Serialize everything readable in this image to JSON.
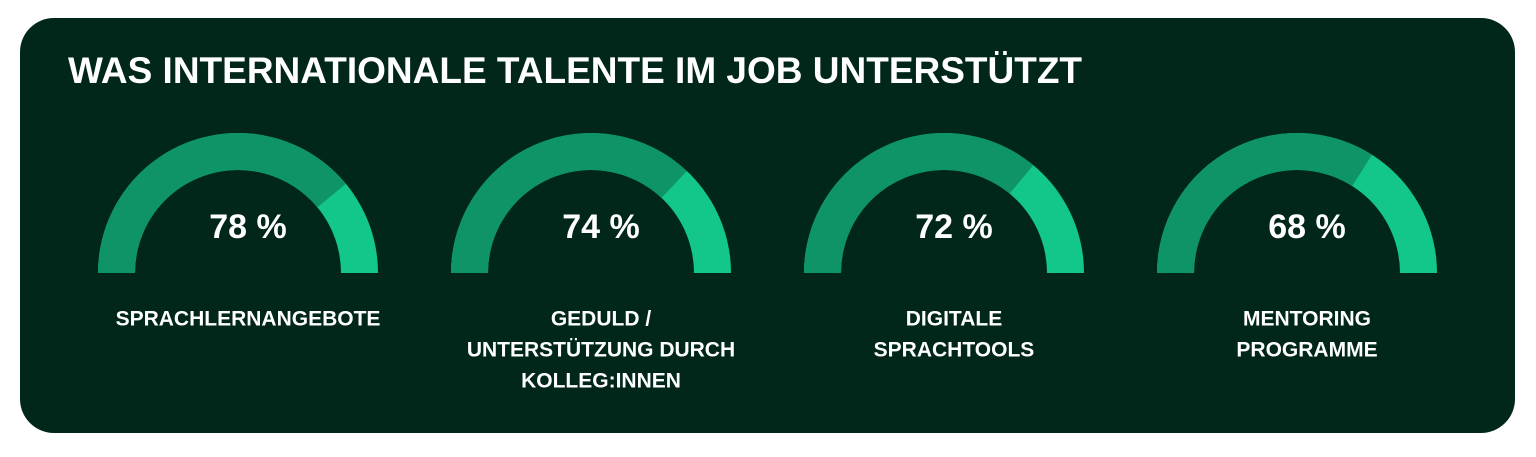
{
  "chart_data": {
    "type": "gauge",
    "title": "WAS INTERNATIONALE TALENTE IM JOB UNTERSTÜTZT",
    "categories": [
      [
        "SPRACHLERNANGEBOTE"
      ],
      [
        "GEDULD /",
        "UNTERSTÜTZUNG DURCH",
        "KOLLEG:INNEN"
      ],
      [
        "DIGITALE",
        "SPRACHTOOLS"
      ],
      [
        "MENTORING",
        "PROGRAMME"
      ]
    ],
    "values": [
      78,
      74,
      72,
      68
    ],
    "value_labels": [
      "78 %",
      "74 %",
      "72 %",
      "68 %"
    ],
    "ylim": [
      0,
      100
    ],
    "color": "#0e9466",
    "track_color": "#13c68a"
  }
}
